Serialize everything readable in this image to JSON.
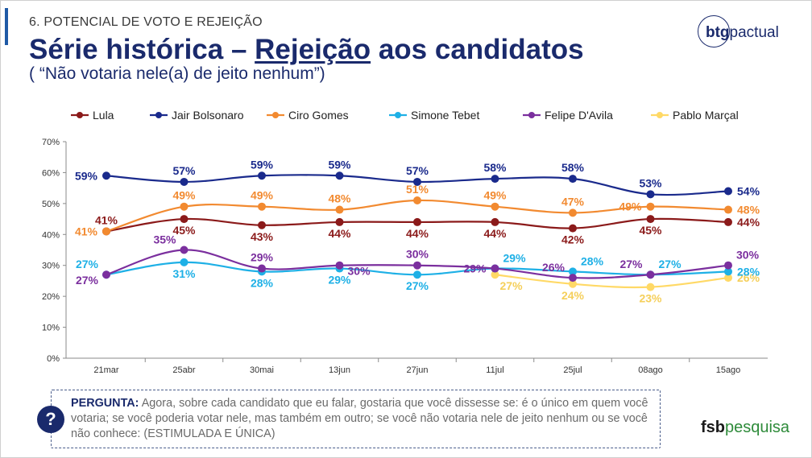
{
  "header": {
    "section": "6. POTENCIAL DE VOTO E REJEIÇÃO",
    "title_part1": "Série histórica – ",
    "title_underlined": "Rejeição",
    "title_part2": " aos candidatos",
    "subtitle": "( “Não votaria nele(a) de jeito nenhum”)"
  },
  "logos": {
    "btg_bold": "btg",
    "btg_light": "pactual",
    "fsb_bold": "fsb",
    "fsb_light": "pesquisa"
  },
  "question": {
    "icon": "?",
    "label": "PERGUNTA:",
    "text": " Agora, sobre cada candidato que eu falar, gostaria que você dissesse se: é o único em quem você votaria; se você poderia votar nele, mas também em outro; se você não votaria nele de jeito nenhum ou se você não conhece: (ESTIMULADA E ÚNICA)"
  },
  "chart_data": {
    "type": "line",
    "categories": [
      "21mar",
      "25abr",
      "30mai",
      "13jun",
      "27jun",
      "11jul",
      "25jul",
      "08ago",
      "15ago"
    ],
    "y_ticks": [
      "0%",
      "10%",
      "20%",
      "30%",
      "40%",
      "50%",
      "60%",
      "70%"
    ],
    "ylim": [
      0,
      70
    ],
    "grid": false,
    "legend_position": "top",
    "series": [
      {
        "name": "Lula",
        "color": "#8b1a1a",
        "values": [
          41,
          45,
          43,
          44,
          44,
          44,
          42,
          45,
          44
        ],
        "labels": [
          "41%",
          "45%",
          "43%",
          "44%",
          "44%",
          "44%",
          "42%",
          "45%",
          "44%"
        ],
        "label_pos": [
          "above",
          "below",
          "below",
          "below",
          "below",
          "below",
          "below",
          "below",
          "right"
        ]
      },
      {
        "name": "Jair Bolsonaro",
        "color": "#1a2a8c",
        "values": [
          59,
          57,
          59,
          59,
          57,
          58,
          58,
          53,
          54
        ],
        "labels": [
          "59%",
          "57%",
          "59%",
          "59%",
          "57%",
          "58%",
          "58%",
          "53%",
          "54%"
        ],
        "label_pos": [
          "left",
          "above",
          "above",
          "above",
          "above",
          "above",
          "above",
          "above",
          "right"
        ]
      },
      {
        "name": "Ciro Gomes",
        "color": "#f28a30",
        "values": [
          41,
          49,
          49,
          48,
          51,
          49,
          47,
          49,
          48
        ],
        "labels": [
          "41%",
          "49%",
          "49%",
          "48%",
          "51%",
          "49%",
          "47%",
          "49%",
          "48%"
        ],
        "label_pos": [
          "left",
          "above",
          "above",
          "above",
          "above",
          "above",
          "above",
          "left",
          "right"
        ]
      },
      {
        "name": "Simone Tebet",
        "color": "#1eb0e6",
        "values": [
          27,
          31,
          28,
          29,
          27,
          29,
          28,
          27,
          28
        ],
        "labels": [
          "27%",
          "31%",
          "28%",
          "29%",
          "27%",
          "29%",
          "28%",
          "27%",
          "28%"
        ],
        "label_pos": [
          "leftup",
          "below",
          "below",
          "below",
          "below",
          "rightup",
          "rightup",
          "rightup",
          "right"
        ]
      },
      {
        "name": "Felipe D'Avila",
        "color": "#7b2f9e",
        "values": [
          27,
          35,
          29,
          30,
          30,
          29,
          26,
          27,
          30
        ],
        "labels": [
          "27%",
          "35%",
          "29%",
          "30%",
          "30%",
          "29%",
          "26%",
          "27%",
          "30%"
        ],
        "label_pos": [
          "leftdown",
          "leftup",
          "above",
          "rightdown",
          "above",
          "left",
          "leftup",
          "leftup",
          "rightup"
        ]
      },
      {
        "name": "Pablo Marçal",
        "color": "#ffd966",
        "values": [
          null,
          null,
          null,
          null,
          null,
          27,
          24,
          23,
          26
        ],
        "labels": [
          "",
          "",
          "",
          "",
          "",
          "27%",
          "24%",
          "23%",
          "26%"
        ],
        "label_pos": [
          "",
          "",
          "",
          "",
          "",
          "belowright",
          "below",
          "below",
          "right"
        ]
      }
    ]
  }
}
